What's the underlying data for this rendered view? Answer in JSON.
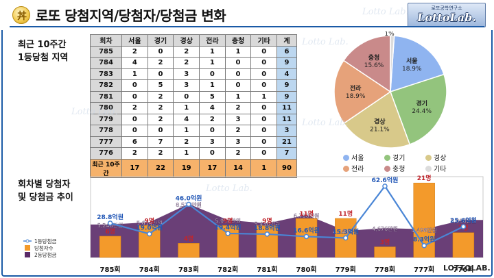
{
  "header": {
    "title": "로또 당첨지역/당첨자/당첨금 변화",
    "icon_glyph": "丼",
    "logo_sub": "로또공학연구소",
    "logo_main": "LottoLab."
  },
  "labels": {
    "region_line1": "최근 10주간",
    "region_line2": "1등당첨 지역",
    "trend_line1": "회차별 당첨자",
    "trend_line2": "및 당첨금 추이",
    "footer": "LOTTOLAB."
  },
  "watermarks": [
    "Lotto Lab.",
    "Lotto Lab.",
    "Lotto Lab.",
    "Lotto Lab.",
    "Lotto Lab."
  ],
  "region_table": {
    "headers": [
      "회차",
      "서울",
      "경기",
      "경상",
      "전라",
      "충청",
      "기타",
      "계"
    ],
    "rows": [
      [
        "785",
        "2",
        "0",
        "2",
        "1",
        "1",
        "0",
        "6"
      ],
      [
        "784",
        "4",
        "2",
        "2",
        "1",
        "0",
        "0",
        "9"
      ],
      [
        "783",
        "1",
        "0",
        "3",
        "0",
        "0",
        "0",
        "4"
      ],
      [
        "782",
        "0",
        "5",
        "3",
        "1",
        "0",
        "0",
        "9"
      ],
      [
        "781",
        "0",
        "2",
        "0",
        "5",
        "1",
        "1",
        "9"
      ],
      [
        "780",
        "2",
        "2",
        "1",
        "4",
        "2",
        "0",
        "11"
      ],
      [
        "779",
        "0",
        "2",
        "4",
        "2",
        "3",
        "0",
        "11"
      ],
      [
        "778",
        "0",
        "0",
        "1",
        "0",
        "2",
        "0",
        "3"
      ],
      [
        "777",
        "6",
        "7",
        "2",
        "3",
        "3",
        "0",
        "21"
      ],
      [
        "776",
        "2",
        "2",
        "1",
        "0",
        "2",
        "0",
        "7"
      ]
    ],
    "total": [
      "최근 10주간",
      "17",
      "22",
      "19",
      "17",
      "14",
      "1",
      "90"
    ]
  },
  "chart_data": [
    {
      "type": "pie",
      "slices": [
        {
          "name": "서울",
          "value": 18.9,
          "label": "18.9%",
          "color": "#8fb4f0"
        },
        {
          "name": "경기",
          "value": 24.4,
          "label": "24.4%",
          "color": "#93c47d"
        },
        {
          "name": "경상",
          "value": 21.1,
          "label": "21.1%",
          "color": "#d8c98a"
        },
        {
          "name": "전라",
          "value": 18.9,
          "label": "18.9%",
          "color": "#e6a27a"
        },
        {
          "name": "충청",
          "value": 15.6,
          "label": "15.6%",
          "color": "#c98a8a"
        },
        {
          "name": "기타",
          "value": 1.1,
          "label": "1%",
          "color": "#dcdcdc"
        }
      ],
      "legend": [
        "서울",
        "경기",
        "경상",
        "전라",
        "충청",
        "기타"
      ],
      "legend_position": "bottom"
    },
    {
      "type": "bar",
      "categories": [
        "785회",
        "784회",
        "783회",
        "782회",
        "781회",
        "780회",
        "779회",
        "778회",
        "777회",
        "776회"
      ],
      "series": [
        {
          "name": "1등당첨금",
          "kind": "line",
          "unit": "억원",
          "values": [
            28.8,
            19.0,
            46.0,
            19.4,
            18.8,
            16.6,
            15.3,
            62.6,
            8.3,
            25.6
          ],
          "labels": [
            "28.8억원",
            "19.0억원",
            "46.0억원",
            "19.4억원",
            "18.8억원",
            "16.6억원",
            "15.3억원",
            "62.6억원",
            "8.3억원",
            "25.6억원"
          ],
          "color": "#4a86d6"
        },
        {
          "name": "당첨자수",
          "kind": "bar",
          "unit": "명",
          "values": [
            6,
            9,
            4,
            9,
            9,
            11,
            11,
            3,
            21,
            7
          ],
          "labels": [
            "6명",
            "9명",
            "4명",
            "9명",
            "9명",
            "11명",
            "11명",
            "3명",
            "21명",
            "7명"
          ],
          "color": "#f39a2b"
        },
        {
          "name": "2등당첨금",
          "kind": "area",
          "unit": "만원",
          "values": [
            5248,
            5614,
            8525,
            5958,
            5430,
            6790,
            4240,
            4676,
            4498,
            5968
          ],
          "labels": [
            "5,248만원",
            "5,614만원",
            "8,525만원",
            "5,958만원",
            "5,430만원",
            "6,790만원",
            "4,240만원",
            "4,676만원",
            "4,498만원",
            "5,968만원"
          ],
          "color": "#5a2a68"
        }
      ],
      "legend_position": "bottom-left"
    }
  ]
}
